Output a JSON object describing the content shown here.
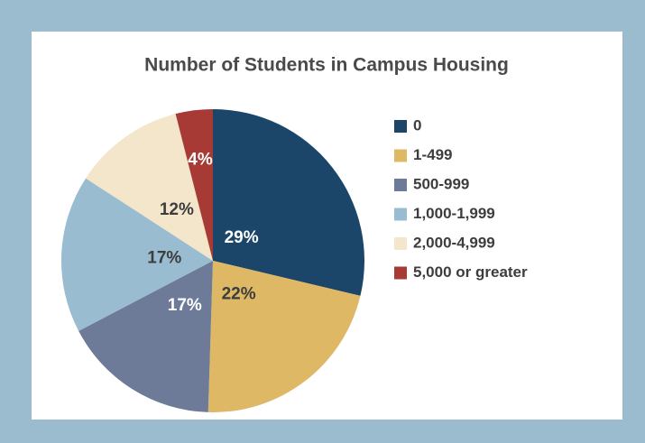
{
  "chart_data": {
    "type": "pie",
    "title": "Number of Students in Campus Housing",
    "categories": [
      "0",
      "1-499",
      "500-999",
      "1,000-1,999",
      "2,000-4,999",
      "5,000 or greater"
    ],
    "values": [
      29,
      22,
      17,
      17,
      12,
      4
    ],
    "value_labels": [
      "29%",
      "22%",
      "17%",
      "17%",
      "12%",
      "4%"
    ],
    "colors": [
      "#1b4669",
      "#dfb865",
      "#6e7b98",
      "#99bcd0",
      "#f3e6cb",
      "#a83a35"
    ],
    "legend": "right"
  }
}
